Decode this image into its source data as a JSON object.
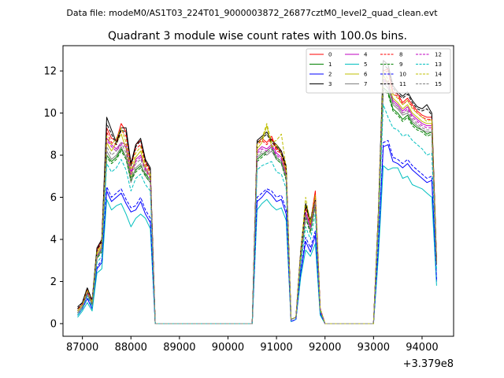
{
  "header": {
    "filename": "Data file: modeM0/AS1T03_224T01_9000003872_26877cztM0_level2_quad_clean.evt"
  },
  "chart_data": {
    "type": "line",
    "title": "Quadrant 3 module wise count rates with 100.0s bins.",
    "xlabel": "",
    "ylabel": "",
    "x_offset_label": "+3.379e8",
    "xlim": [
      86600,
      94650
    ],
    "ylim": [
      -0.6,
      13.2
    ],
    "xticks": [
      87000,
      88000,
      89000,
      90000,
      91000,
      92000,
      93000,
      94000
    ],
    "xtick_labels": [
      "87000",
      "88000",
      "89000",
      "90000",
      "91000",
      "92000",
      "93000",
      "94000"
    ],
    "yticks": [
      0,
      2,
      4,
      6,
      8,
      10,
      12
    ],
    "ytick_labels": [
      "0",
      "2",
      "4",
      "6",
      "8",
      "10",
      "12"
    ],
    "legend_position": "top-right",
    "x": [
      86900,
      87000,
      87100,
      87200,
      87300,
      87400,
      87500,
      87600,
      87700,
      87800,
      87900,
      88000,
      88100,
      88200,
      88300,
      88400,
      88500,
      88600,
      89000,
      89500,
      90000,
      90500,
      90600,
      90700,
      90800,
      90900,
      91000,
      91100,
      91200,
      91300,
      91400,
      91500,
      91600,
      91700,
      91800,
      91900,
      92000,
      92100,
      92500,
      93000,
      93100,
      93200,
      93300,
      93400,
      93500,
      93600,
      93700,
      93800,
      93900,
      94000,
      94100,
      94200,
      94300
    ],
    "series": [
      {
        "name": "0",
        "color": "#ff0000",
        "dash": "solid",
        "values": [
          0.7,
          0.9,
          1.6,
          1.0,
          3.5,
          4.0,
          9.3,
          8.8,
          8.7,
          9.5,
          9.1,
          7.6,
          8.5,
          8.7,
          7.7,
          7.3,
          0.0,
          0.0,
          0.0,
          0.0,
          0.0,
          0.0,
          8.6,
          8.8,
          8.6,
          8.9,
          8.3,
          8.2,
          7.4,
          0.2,
          0.3,
          3.4,
          5.6,
          4.8,
          6.3,
          0.7,
          0.0,
          0.0,
          0.0,
          0.0,
          5.2,
          12.0,
          12.1,
          11.0,
          10.9,
          10.5,
          10.7,
          10.4,
          10.1,
          9.9,
          9.8,
          9.8,
          3.0
        ]
      },
      {
        "name": "1",
        "color": "#008000",
        "dash": "solid",
        "values": [
          0.5,
          0.8,
          1.5,
          0.9,
          3.2,
          3.5,
          8.0,
          7.7,
          7.9,
          8.3,
          7.9,
          6.9,
          7.3,
          7.5,
          7.1,
          6.8,
          0.0,
          0.0,
          0.0,
          0.0,
          0.0,
          0.0,
          7.8,
          8.0,
          8.2,
          8.4,
          7.9,
          7.7,
          6.9,
          0.2,
          0.3,
          3.1,
          5.1,
          4.4,
          5.7,
          0.6,
          0.0,
          0.0,
          0.0,
          0.0,
          4.8,
          11.2,
          11.0,
          10.2,
          10.0,
          9.7,
          9.9,
          9.5,
          9.3,
          9.2,
          9.0,
          9.1,
          2.8
        ]
      },
      {
        "name": "2",
        "color": "#0000ff",
        "dash": "solid",
        "values": [
          0.4,
          0.7,
          1.2,
          0.7,
          2.6,
          2.9,
          6.3,
          5.8,
          6.0,
          6.2,
          5.7,
          5.3,
          5.4,
          5.8,
          5.2,
          4.8,
          0.0,
          0.0,
          0.0,
          0.0,
          0.0,
          0.0,
          5.8,
          6.0,
          6.3,
          6.1,
          5.8,
          5.9,
          5.2,
          0.1,
          0.2,
          2.4,
          3.9,
          3.4,
          4.2,
          0.5,
          0.0,
          0.0,
          0.0,
          0.0,
          3.5,
          8.4,
          8.5,
          7.7,
          7.6,
          7.4,
          7.6,
          7.3,
          7.1,
          6.9,
          6.7,
          6.8,
          2.0
        ]
      },
      {
        "name": "3",
        "color": "#000000",
        "dash": "solid",
        "values": [
          0.8,
          1.0,
          1.7,
          1.1,
          3.6,
          4.0,
          9.8,
          9.2,
          8.6,
          9.3,
          9.3,
          7.6,
          8.5,
          8.8,
          7.8,
          7.4,
          0.0,
          0.0,
          0.0,
          0.0,
          0.0,
          0.0,
          8.7,
          8.9,
          9.1,
          8.7,
          8.5,
          8.2,
          7.5,
          0.2,
          0.3,
          3.5,
          5.7,
          4.9,
          6.0,
          0.7,
          0.0,
          0.0,
          0.0,
          0.0,
          5.3,
          12.5,
          12.3,
          11.3,
          11.0,
          10.8,
          11.0,
          10.6,
          10.3,
          10.2,
          10.4,
          10.0,
          3.0
        ]
      },
      {
        "name": "4",
        "color": "#bf00bf",
        "dash": "solid",
        "values": [
          0.6,
          0.9,
          1.5,
          1.0,
          3.3,
          3.7,
          8.8,
          8.5,
          8.3,
          8.6,
          8.5,
          7.2,
          7.8,
          8.0,
          7.4,
          7.0,
          0.0,
          0.0,
          0.0,
          0.0,
          0.0,
          0.0,
          8.2,
          8.4,
          8.3,
          8.5,
          8.1,
          7.9,
          7.1,
          0.2,
          0.3,
          3.2,
          5.3,
          4.6,
          5.9,
          0.7,
          0.0,
          0.0,
          0.0,
          0.0,
          5.0,
          11.6,
          11.5,
          10.6,
          10.4,
          10.1,
          10.3,
          9.9,
          9.7,
          9.5,
          9.4,
          9.4,
          2.9
        ]
      },
      {
        "name": "5",
        "color": "#00bfbf",
        "dash": "solid",
        "values": [
          0.3,
          0.6,
          1.0,
          0.6,
          2.4,
          2.6,
          5.9,
          5.4,
          5.6,
          5.7,
          5.2,
          4.6,
          5.0,
          5.2,
          5.0,
          4.5,
          0.0,
          0.0,
          0.0,
          0.0,
          0.0,
          0.0,
          5.4,
          5.7,
          5.9,
          5.6,
          5.4,
          5.5,
          4.9,
          0.1,
          0.2,
          2.2,
          3.5,
          3.2,
          3.8,
          0.4,
          0.0,
          0.0,
          0.0,
          0.0,
          3.2,
          7.5,
          7.3,
          7.4,
          7.4,
          6.9,
          7.0,
          6.6,
          6.5,
          6.4,
          6.2,
          6.0,
          1.8
        ]
      },
      {
        "name": "6",
        "color": "#bfbf00",
        "dash": "solid",
        "values": [
          0.6,
          0.9,
          1.5,
          0.9,
          3.3,
          3.7,
          8.6,
          8.2,
          8.6,
          9.0,
          8.3,
          7.0,
          7.9,
          8.2,
          7.3,
          7.0,
          0.0,
          0.0,
          0.0,
          0.0,
          0.0,
          0.0,
          8.3,
          8.6,
          9.4,
          8.4,
          8.5,
          8.0,
          7.2,
          0.2,
          0.3,
          3.3,
          5.6,
          4.7,
          6.0,
          0.7,
          0.0,
          0.0,
          0.0,
          0.0,
          5.1,
          11.8,
          11.4,
          10.7,
          10.5,
          10.2,
          10.4,
          10.0,
          9.8,
          9.6,
          9.5,
          9.5,
          2.9
        ]
      },
      {
        "name": "7",
        "color": "#808080",
        "dash": "solid",
        "values": [
          0.5,
          0.8,
          1.4,
          0.9,
          3.1,
          3.5,
          8.2,
          7.8,
          8.0,
          8.4,
          7.9,
          6.7,
          7.4,
          7.6,
          7.0,
          6.7,
          0.0,
          0.0,
          0.0,
          0.0,
          0.0,
          0.0,
          7.9,
          8.1,
          8.0,
          8.2,
          7.8,
          7.6,
          6.9,
          0.2,
          0.3,
          3.1,
          5.1,
          4.4,
          5.6,
          0.6,
          0.0,
          0.0,
          0.0,
          0.0,
          4.9,
          11.4,
          11.2,
          10.4,
          10.2,
          9.9,
          10.0,
          9.6,
          9.4,
          9.2,
          9.1,
          9.1,
          2.8
        ]
      },
      {
        "name": "8",
        "color": "#ff0000",
        "dash": "dashed",
        "values": [
          0.7,
          0.9,
          1.6,
          1.0,
          3.4,
          3.9,
          9.1,
          8.6,
          8.5,
          9.2,
          8.9,
          7.5,
          8.3,
          8.5,
          7.6,
          7.2,
          0.0,
          0.0,
          0.0,
          0.0,
          0.0,
          0.0,
          8.5,
          8.7,
          8.5,
          8.8,
          8.2,
          8.1,
          7.3,
          0.2,
          0.3,
          3.4,
          5.5,
          4.7,
          6.1,
          0.7,
          0.0,
          0.0,
          0.0,
          0.0,
          5.2,
          11.9,
          12.0,
          10.9,
          10.8,
          10.4,
          10.6,
          10.3,
          10.0,
          9.8,
          9.7,
          9.7,
          3.0
        ]
      },
      {
        "name": "9",
        "color": "#008000",
        "dash": "dashed",
        "values": [
          0.5,
          0.8,
          1.5,
          0.9,
          3.1,
          3.4,
          7.9,
          7.6,
          7.8,
          8.2,
          7.8,
          6.8,
          7.2,
          7.4,
          7.0,
          6.7,
          0.0,
          0.0,
          0.0,
          0.0,
          0.0,
          0.0,
          7.7,
          7.9,
          8.1,
          8.3,
          7.8,
          7.6,
          6.8,
          0.2,
          0.3,
          3.0,
          5.0,
          4.3,
          5.6,
          0.6,
          0.0,
          0.0,
          0.0,
          0.0,
          4.7,
          11.1,
          10.9,
          10.1,
          9.9,
          9.6,
          9.8,
          9.4,
          9.2,
          9.1,
          8.9,
          9.0,
          2.8
        ]
      },
      {
        "name": "10",
        "color": "#0000ff",
        "dash": "dashed",
        "values": [
          0.4,
          0.7,
          1.3,
          0.8,
          2.7,
          3.0,
          6.5,
          6.0,
          6.2,
          6.4,
          5.9,
          5.5,
          5.6,
          6.0,
          5.4,
          5.0,
          0.0,
          0.0,
          0.0,
          0.0,
          0.0,
          0.0,
          6.0,
          6.2,
          6.4,
          6.3,
          6.0,
          6.1,
          5.4,
          0.1,
          0.2,
          2.5,
          4.1,
          3.6,
          4.4,
          0.5,
          0.0,
          0.0,
          0.0,
          0.0,
          3.7,
          8.6,
          8.7,
          7.9,
          7.8,
          7.6,
          7.8,
          7.5,
          7.3,
          7.1,
          6.9,
          7.0,
          2.1
        ]
      },
      {
        "name": "11",
        "color": "#000000",
        "dash": "dashed",
        "values": [
          0.7,
          1.0,
          1.7,
          1.1,
          3.5,
          3.9,
          9.5,
          9.0,
          8.5,
          9.2,
          9.1,
          7.5,
          8.4,
          8.7,
          7.7,
          7.3,
          0.0,
          0.0,
          0.0,
          0.0,
          0.0,
          0.0,
          8.6,
          8.8,
          9.0,
          8.6,
          8.4,
          8.1,
          7.4,
          0.2,
          0.3,
          3.4,
          5.6,
          4.8,
          5.9,
          0.7,
          0.0,
          0.0,
          0.0,
          0.0,
          5.2,
          12.3,
          12.1,
          11.2,
          10.9,
          10.7,
          10.9,
          10.5,
          10.2,
          10.1,
          10.2,
          9.9,
          3.0
        ]
      },
      {
        "name": "12",
        "color": "#bf00bf",
        "dash": "dashed",
        "values": [
          0.6,
          0.9,
          1.5,
          1.0,
          3.2,
          3.6,
          8.7,
          8.4,
          8.2,
          8.5,
          8.4,
          7.1,
          7.7,
          7.9,
          7.3,
          6.9,
          0.0,
          0.0,
          0.0,
          0.0,
          0.0,
          0.0,
          8.1,
          8.3,
          8.2,
          8.4,
          8.0,
          7.8,
          7.0,
          0.2,
          0.3,
          3.2,
          5.2,
          4.5,
          5.8,
          0.7,
          0.0,
          0.0,
          0.0,
          0.0,
          4.9,
          11.5,
          11.4,
          10.5,
          10.3,
          10.0,
          10.2,
          9.8,
          9.6,
          9.4,
          9.3,
          9.3,
          2.9
        ]
      },
      {
        "name": "13",
        "color": "#00bfbf",
        "dash": "dashed",
        "values": [
          0.4,
          0.7,
          1.3,
          0.8,
          2.9,
          3.2,
          7.6,
          7.2,
          7.4,
          7.8,
          7.3,
          6.3,
          6.9,
          7.1,
          6.6,
          6.3,
          0.0,
          0.0,
          0.0,
          0.0,
          0.0,
          0.0,
          7.3,
          7.5,
          7.6,
          7.7,
          7.2,
          7.1,
          6.4,
          0.2,
          0.3,
          2.8,
          4.6,
          4.0,
          5.2,
          0.6,
          0.0,
          0.0,
          0.0,
          0.0,
          4.5,
          10.4,
          9.8,
          9.3,
          9.2,
          8.9,
          9.0,
          8.7,
          8.5,
          8.3,
          8.0,
          8.1,
          2.5
        ]
      },
      {
        "name": "14",
        "color": "#bfbf00",
        "dash": "dashed",
        "values": [
          0.6,
          0.9,
          1.6,
          1.0,
          3.4,
          3.8,
          8.9,
          8.5,
          8.8,
          9.3,
          8.6,
          7.3,
          8.1,
          8.4,
          7.5,
          7.1,
          0.0,
          0.0,
          0.0,
          0.0,
          0.0,
          0.0,
          8.5,
          8.8,
          9.5,
          8.6,
          8.7,
          9.0,
          7.4,
          0.2,
          0.3,
          3.4,
          6.0,
          4.8,
          6.1,
          0.7,
          0.0,
          0.0,
          0.0,
          0.0,
          5.2,
          12.0,
          11.6,
          10.9,
          10.7,
          10.4,
          10.6,
          10.2,
          10.0,
          9.8,
          9.6,
          9.7,
          3.0
        ]
      },
      {
        "name": "15",
        "color": "#808080",
        "dash": "dashed",
        "values": [
          0.5,
          0.8,
          1.4,
          0.9,
          3.2,
          3.6,
          8.4,
          8.0,
          8.2,
          8.6,
          8.1,
          6.9,
          7.6,
          7.8,
          7.2,
          6.8,
          0.0,
          0.0,
          0.0,
          0.0,
          0.0,
          0.0,
          8.0,
          8.2,
          8.1,
          8.3,
          7.9,
          7.7,
          7.0,
          0.2,
          0.3,
          3.2,
          5.2,
          4.5,
          5.7,
          0.6,
          0.0,
          0.0,
          0.0,
          0.0,
          5.0,
          11.6,
          11.4,
          10.5,
          10.3,
          10.0,
          10.1,
          9.7,
          9.5,
          9.3,
          9.2,
          9.2,
          2.8
        ]
      }
    ]
  }
}
